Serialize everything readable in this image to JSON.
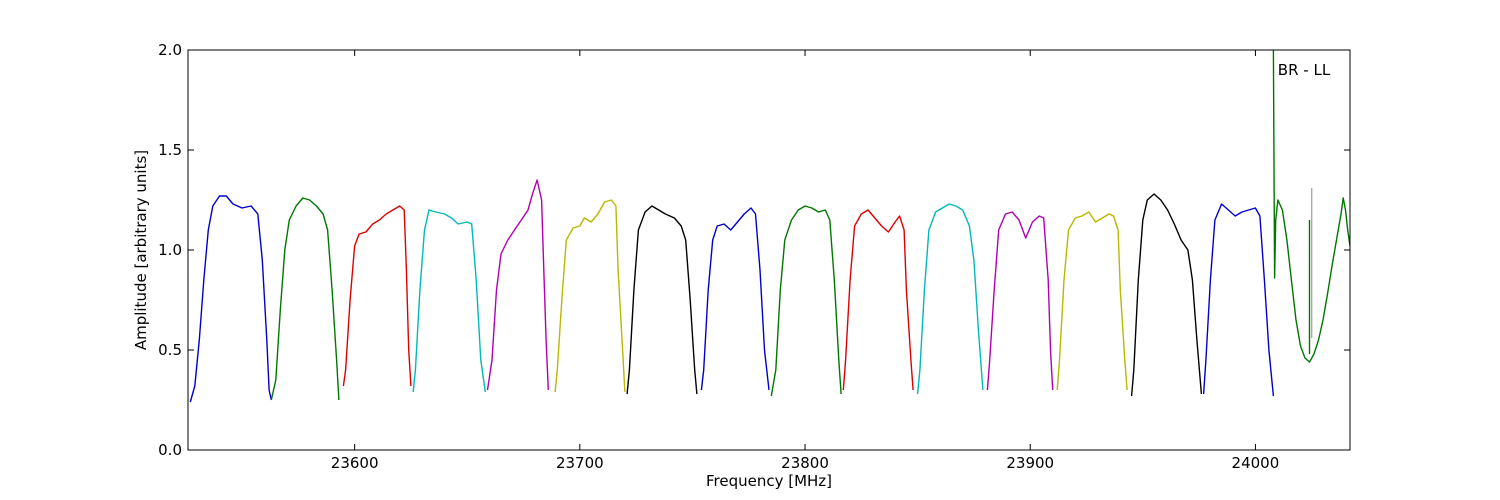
{
  "chart_data": {
    "type": "line",
    "title": "",
    "annotation": "BR - LL",
    "xlabel": "Frequency [MHz]",
    "ylabel": "Amplitude [arbitrary units]",
    "xlim": [
      23526,
      24042
    ],
    "ylim": [
      0.0,
      2.0
    ],
    "x_ticks": [
      23600,
      23700,
      23800,
      23900,
      24000
    ],
    "x_tick_labels": [
      "23600",
      "23700",
      "23800",
      "23900",
      "24000"
    ],
    "y_ticks": [
      0.0,
      0.5,
      1.0,
      1.5,
      2.0
    ],
    "y_tick_labels": [
      "0.0",
      "0.5",
      "1.0",
      "1.5",
      "2.0"
    ],
    "grid": false,
    "legend": "none",
    "series": [
      {
        "color": "#0000cc",
        "points": [
          [
            23527,
            0.24
          ],
          [
            23529,
            0.32
          ],
          [
            23531,
            0.55
          ],
          [
            23533,
            0.85
          ],
          [
            23535,
            1.1
          ],
          [
            23537,
            1.22
          ],
          [
            23540,
            1.27
          ],
          [
            23543,
            1.27
          ],
          [
            23546,
            1.23
          ],
          [
            23550,
            1.21
          ],
          [
            23554,
            1.22
          ],
          [
            23557,
            1.18
          ],
          [
            23559,
            0.95
          ],
          [
            23561,
            0.55
          ],
          [
            23562,
            0.3
          ],
          [
            23563,
            0.25
          ]
        ]
      },
      {
        "color": "#007700",
        "points": [
          [
            23563,
            0.25
          ],
          [
            23565,
            0.35
          ],
          [
            23567,
            0.7
          ],
          [
            23569,
            1.0
          ],
          [
            23571,
            1.15
          ],
          [
            23574,
            1.22
          ],
          [
            23577,
            1.26
          ],
          [
            23580,
            1.25
          ],
          [
            23583,
            1.22
          ],
          [
            23586,
            1.18
          ],
          [
            23588,
            1.1
          ],
          [
            23590,
            0.8
          ],
          [
            23592,
            0.45
          ],
          [
            23593,
            0.25
          ]
        ]
      },
      {
        "color": "#dd0000",
        "points": [
          [
            23595,
            0.32
          ],
          [
            23596,
            0.4
          ],
          [
            23598,
            0.75
          ],
          [
            23600,
            1.02
          ],
          [
            23602,
            1.08
          ],
          [
            23605,
            1.09
          ],
          [
            23608,
            1.13
          ],
          [
            23611,
            1.15
          ],
          [
            23614,
            1.18
          ],
          [
            23617,
            1.2
          ],
          [
            23620,
            1.22
          ],
          [
            23622,
            1.2
          ],
          [
            23623,
            0.9
          ],
          [
            23624,
            0.5
          ],
          [
            23625,
            0.32
          ]
        ]
      },
      {
        "color": "#00b8b8",
        "points": [
          [
            23626,
            0.29
          ],
          [
            23627,
            0.4
          ],
          [
            23629,
            0.8
          ],
          [
            23631,
            1.1
          ],
          [
            23633,
            1.2
          ],
          [
            23636,
            1.19
          ],
          [
            23640,
            1.18
          ],
          [
            23643,
            1.16
          ],
          [
            23646,
            1.13
          ],
          [
            23650,
            1.14
          ],
          [
            23652,
            1.13
          ],
          [
            23654,
            0.85
          ],
          [
            23656,
            0.45
          ],
          [
            23658,
            0.29
          ]
        ]
      },
      {
        "color": "#b000b0",
        "points": [
          [
            23659,
            0.3
          ],
          [
            23661,
            0.45
          ],
          [
            23663,
            0.8
          ],
          [
            23665,
            0.98
          ],
          [
            23668,
            1.05
          ],
          [
            23671,
            1.1
          ],
          [
            23674,
            1.15
          ],
          [
            23677,
            1.2
          ],
          [
            23679,
            1.28
          ],
          [
            23681,
            1.35
          ],
          [
            23683,
            1.25
          ],
          [
            23684,
            0.9
          ],
          [
            23685,
            0.55
          ],
          [
            23686,
            0.3
          ]
        ]
      },
      {
        "color": "#b8b800",
        "points": [
          [
            23689,
            0.29
          ],
          [
            23690,
            0.4
          ],
          [
            23692,
            0.75
          ],
          [
            23694,
            1.05
          ],
          [
            23697,
            1.11
          ],
          [
            23700,
            1.12
          ],
          [
            23702,
            1.16
          ],
          [
            23705,
            1.14
          ],
          [
            23708,
            1.18
          ],
          [
            23711,
            1.24
          ],
          [
            23714,
            1.25
          ],
          [
            23716,
            1.22
          ],
          [
            23717,
            0.9
          ],
          [
            23719,
            0.5
          ],
          [
            23720,
            0.29
          ]
        ]
      },
      {
        "color": "#000000",
        "points": [
          [
            23721,
            0.28
          ],
          [
            23722,
            0.4
          ],
          [
            23724,
            0.8
          ],
          [
            23726,
            1.1
          ],
          [
            23729,
            1.19
          ],
          [
            23732,
            1.22
          ],
          [
            23735,
            1.2
          ],
          [
            23738,
            1.18
          ],
          [
            23742,
            1.16
          ],
          [
            23745,
            1.12
          ],
          [
            23747,
            1.05
          ],
          [
            23749,
            0.75
          ],
          [
            23751,
            0.4
          ],
          [
            23752,
            0.28
          ]
        ]
      },
      {
        "color": "#0000cc",
        "points": [
          [
            23754,
            0.3
          ],
          [
            23755,
            0.4
          ],
          [
            23757,
            0.8
          ],
          [
            23759,
            1.05
          ],
          [
            23761,
            1.12
          ],
          [
            23764,
            1.13
          ],
          [
            23767,
            1.1
          ],
          [
            23770,
            1.14
          ],
          [
            23773,
            1.18
          ],
          [
            23776,
            1.21
          ],
          [
            23778,
            1.18
          ],
          [
            23780,
            0.9
          ],
          [
            23782,
            0.5
          ],
          [
            23784,
            0.3
          ]
        ]
      },
      {
        "color": "#007700",
        "points": [
          [
            23785,
            0.27
          ],
          [
            23787,
            0.4
          ],
          [
            23789,
            0.8
          ],
          [
            23791,
            1.05
          ],
          [
            23794,
            1.15
          ],
          [
            23797,
            1.2
          ],
          [
            23800,
            1.22
          ],
          [
            23803,
            1.21
          ],
          [
            23806,
            1.19
          ],
          [
            23809,
            1.2
          ],
          [
            23811,
            1.15
          ],
          [
            23813,
            0.85
          ],
          [
            23815,
            0.45
          ],
          [
            23816,
            0.28
          ]
        ]
      },
      {
        "color": "#dd0000",
        "points": [
          [
            23817,
            0.3
          ],
          [
            23818,
            0.45
          ],
          [
            23820,
            0.85
          ],
          [
            23822,
            1.12
          ],
          [
            23825,
            1.18
          ],
          [
            23828,
            1.2
          ],
          [
            23831,
            1.16
          ],
          [
            23834,
            1.12
          ],
          [
            23837,
            1.09
          ],
          [
            23840,
            1.14
          ],
          [
            23842,
            1.17
          ],
          [
            23844,
            1.1
          ],
          [
            23845,
            0.8
          ],
          [
            23847,
            0.45
          ],
          [
            23848,
            0.3
          ]
        ]
      },
      {
        "color": "#00b8b8",
        "points": [
          [
            23850,
            0.28
          ],
          [
            23851,
            0.4
          ],
          [
            23853,
            0.8
          ],
          [
            23855,
            1.1
          ],
          [
            23858,
            1.19
          ],
          [
            23861,
            1.21
          ],
          [
            23864,
            1.23
          ],
          [
            23867,
            1.22
          ],
          [
            23870,
            1.2
          ],
          [
            23873,
            1.12
          ],
          [
            23875,
            0.95
          ],
          [
            23877,
            0.6
          ],
          [
            23879,
            0.3
          ]
        ]
      },
      {
        "color": "#b000b0",
        "points": [
          [
            23881,
            0.3
          ],
          [
            23882,
            0.45
          ],
          [
            23884,
            0.8
          ],
          [
            23886,
            1.1
          ],
          [
            23889,
            1.18
          ],
          [
            23892,
            1.19
          ],
          [
            23895,
            1.15
          ],
          [
            23898,
            1.06
          ],
          [
            23901,
            1.14
          ],
          [
            23904,
            1.17
          ],
          [
            23906,
            1.16
          ],
          [
            23908,
            0.85
          ],
          [
            23909,
            0.5
          ],
          [
            23910,
            0.3
          ]
        ]
      },
      {
        "color": "#b8b800",
        "points": [
          [
            23912,
            0.3
          ],
          [
            23913,
            0.45
          ],
          [
            23915,
            0.85
          ],
          [
            23917,
            1.1
          ],
          [
            23920,
            1.16
          ],
          [
            23923,
            1.17
          ],
          [
            23926,
            1.19
          ],
          [
            23929,
            1.14
          ],
          [
            23932,
            1.16
          ],
          [
            23935,
            1.18
          ],
          [
            23937,
            1.17
          ],
          [
            23939,
            1.1
          ],
          [
            23940,
            0.8
          ],
          [
            23942,
            0.45
          ],
          [
            23943,
            0.3
          ]
        ]
      },
      {
        "color": "#000000",
        "points": [
          [
            23945,
            0.27
          ],
          [
            23946,
            0.4
          ],
          [
            23948,
            0.85
          ],
          [
            23950,
            1.15
          ],
          [
            23952,
            1.25
          ],
          [
            23955,
            1.28
          ],
          [
            23958,
            1.25
          ],
          [
            23961,
            1.2
          ],
          [
            23964,
            1.13
          ],
          [
            23967,
            1.05
          ],
          [
            23970,
            1.0
          ],
          [
            23972,
            0.85
          ],
          [
            23974,
            0.55
          ],
          [
            23976,
            0.28
          ]
        ]
      },
      {
        "color": "#0000cc",
        "points": [
          [
            23977,
            0.28
          ],
          [
            23978,
            0.45
          ],
          [
            23980,
            0.85
          ],
          [
            23982,
            1.15
          ],
          [
            23985,
            1.23
          ],
          [
            23988,
            1.2
          ],
          [
            23991,
            1.17
          ],
          [
            23994,
            1.19
          ],
          [
            23997,
            1.2
          ],
          [
            24000,
            1.21
          ],
          [
            24002,
            1.17
          ],
          [
            24004,
            0.85
          ],
          [
            24006,
            0.5
          ],
          [
            24008,
            0.27
          ]
        ]
      },
      {
        "color": "#007700",
        "points": [
          [
            24008,
            2.0
          ],
          [
            24008.5,
            0.86
          ],
          [
            24009,
            1.15
          ],
          [
            24010,
            1.25
          ],
          [
            24012,
            1.2
          ],
          [
            24014,
            1.05
          ],
          [
            24016,
            0.85
          ],
          [
            24018,
            0.65
          ],
          [
            24020,
            0.52
          ],
          [
            24022,
            0.46
          ],
          [
            24024,
            0.44
          ],
          [
            24026,
            0.48
          ],
          [
            24028,
            0.55
          ],
          [
            24030,
            0.65
          ],
          [
            24032,
            0.78
          ],
          [
            24034,
            0.92
          ],
          [
            24036,
            1.05
          ],
          [
            24038,
            1.18
          ],
          [
            24039,
            1.26
          ],
          [
            24040,
            1.2
          ],
          [
            24041,
            1.1
          ],
          [
            24042,
            1.02
          ]
        ]
      },
      {
        "color": "#aaaaaa",
        "points": [
          [
            24025,
            0.56
          ],
          [
            24025,
            1.31
          ]
        ]
      },
      {
        "color": "#007700",
        "points": [
          [
            24024,
            0.48
          ],
          [
            24024,
            1.15
          ]
        ]
      }
    ]
  }
}
